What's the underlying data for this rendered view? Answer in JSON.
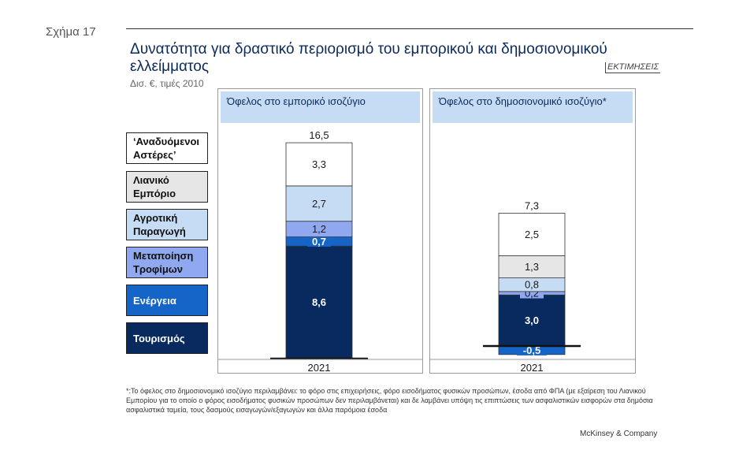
{
  "header": {
    "figure_label": "Σχήμα 17",
    "title": "Δυνατότητα για δραστικό περιορισμό του εμπορικού και δημοσιονομικού ελλείμματος",
    "units": "Δισ. €, τιμές 2010",
    "estimates_tag": "ΕΚΤΙΜΗΣΕΙΣ"
  },
  "colors": {
    "Αναδυόμενοι Αστέρες": "#ffffff",
    "Λιανικό Εμπόριο": "#e6e6e6",
    "Αγροτική Παραγωγή": "#c6dcf4",
    "Μεταποίηση Τροφίμων": "#8fa8f0",
    "Ενέργεια": "#1565c8",
    "Τουρισμός": "#082a5e"
  },
  "legend": [
    {
      "label": "‘Αναδυόμενοι Αστέρες’",
      "fill": "#ffffff",
      "text_color": "#111111"
    },
    {
      "label": "Λιανικό Εμπόριο",
      "fill": "#e6e6e6",
      "text_color": "#111111"
    },
    {
      "label": "Αγροτική Παραγωγή",
      "fill": "#c6dcf4",
      "text_color": "#111111"
    },
    {
      "label": "Μεταποίηση Τροφίμων",
      "fill": "#8fa8f0",
      "text_color": "#111111"
    },
    {
      "label": "Ενέργεια",
      "fill": "#1565c8",
      "text_color": "#ffffff"
    },
    {
      "label": "Τουρισμός",
      "fill": "#082a5e",
      "text_color": "#ffffff"
    }
  ],
  "chart_data": [
    {
      "type": "bar",
      "stacked": true,
      "title": "Όφελος στο εμπορικό ισοζύγιο",
      "categories": [
        "2021"
      ],
      "total": 16.5,
      "series": [
        {
          "name": "Τουρισμός",
          "values": [
            8.6
          ]
        },
        {
          "name": "Ενέργεια",
          "values": [
            0.7
          ]
        },
        {
          "name": "Μεταποίηση Τροφίμων",
          "values": [
            1.2
          ]
        },
        {
          "name": "Αγροτική Παραγωγή",
          "values": [
            2.7
          ]
        },
        {
          "name": "Αναδυόμενοι Αστέρες",
          "values": [
            3.3
          ]
        }
      ],
      "labels": {
        "Τουρισμός": "8,6",
        "Ενέργεια": "0,7",
        "Μεταποίηση Τροφίμων": "1,2",
        "Αγροτική Παραγωγή": "2,7",
        "Αναδυόμενοι Αστέρες": "3,3",
        "total": "16,5"
      },
      "category_label": "2021"
    },
    {
      "type": "bar",
      "stacked": true,
      "title": "Όφελος στο δημοσιονομικό ισοζύγιο*",
      "categories": [
        "2021"
      ],
      "total": 7.3,
      "series": [
        {
          "name": "Ενέργεια",
          "values": [
            -0.5
          ]
        },
        {
          "name": "Τουρισμός",
          "values": [
            3.0
          ]
        },
        {
          "name": "Μεταποίηση Τροφίμων",
          "values": [
            0.2
          ]
        },
        {
          "name": "Αγροτική Παραγωγή",
          "values": [
            0.8
          ]
        },
        {
          "name": "Λιανικό Εμπόριο",
          "values": [
            1.3
          ]
        },
        {
          "name": "Αναδυόμενοι Αστέρες",
          "values": [
            2.5
          ]
        }
      ],
      "labels": {
        "Ενέργεια": "-0,5",
        "Τουρισμός": "3,0",
        "Μεταποίηση Τροφίμων": "0,2",
        "Αγροτική Παραγωγή": "0,8",
        "Λιανικό Εμπόριο": "1,3",
        "Αναδυόμενοι Αστέρες": "2,5",
        "total": "7,3"
      },
      "category_label": "2021"
    }
  ],
  "footnote": "*:Το όφελος στο δημοσιονομικό ισοζύγιο περιλαμβάνει: το φόρο στις επιχειρήσεις, φόρο εισοδήματος φυσικών προσώπων, έσοδα από ΦΠΑ (με εξαίρεση του Λιανικού Εμπορίου για το οποίο ο φόρος εισοδήματος φυσικών προσώπων δεν περιλαμβάνεται) και δε λαμβάνει υπόψη τις επιπτώσεις των ασφαλιστικών εισφορών στα δημόσια ασφαλιστικά ταμεία, τους δασμούς εισαγωγών/εξαγωγών και άλλα παρόμοια έσοδα",
  "brand": "McKinsey & Company"
}
